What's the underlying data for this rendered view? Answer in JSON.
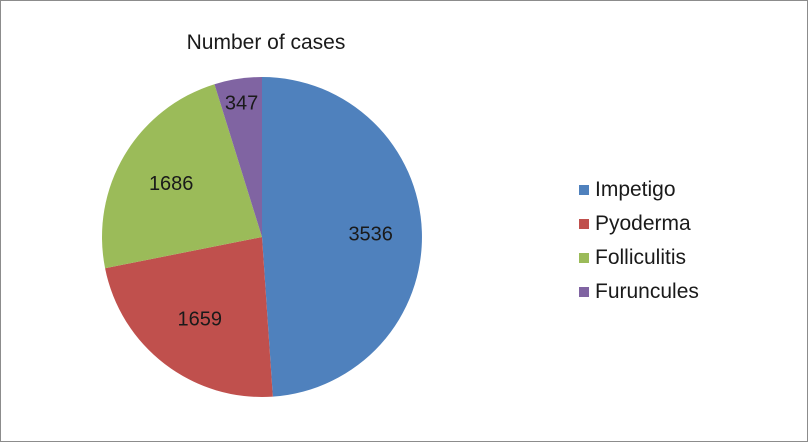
{
  "chart_data": {
    "type": "pie",
    "title": "Number of cases",
    "categories": [
      "Impetigo",
      "Pyoderma",
      "Folliculitis",
      "Furuncules"
    ],
    "values": [
      3536,
      1659,
      1686,
      347
    ],
    "colors": [
      "#4f81bd",
      "#c0504d",
      "#9bbb59",
      "#8064a2"
    ],
    "legend_position": "right",
    "start_angle": "top, clockwise"
  }
}
